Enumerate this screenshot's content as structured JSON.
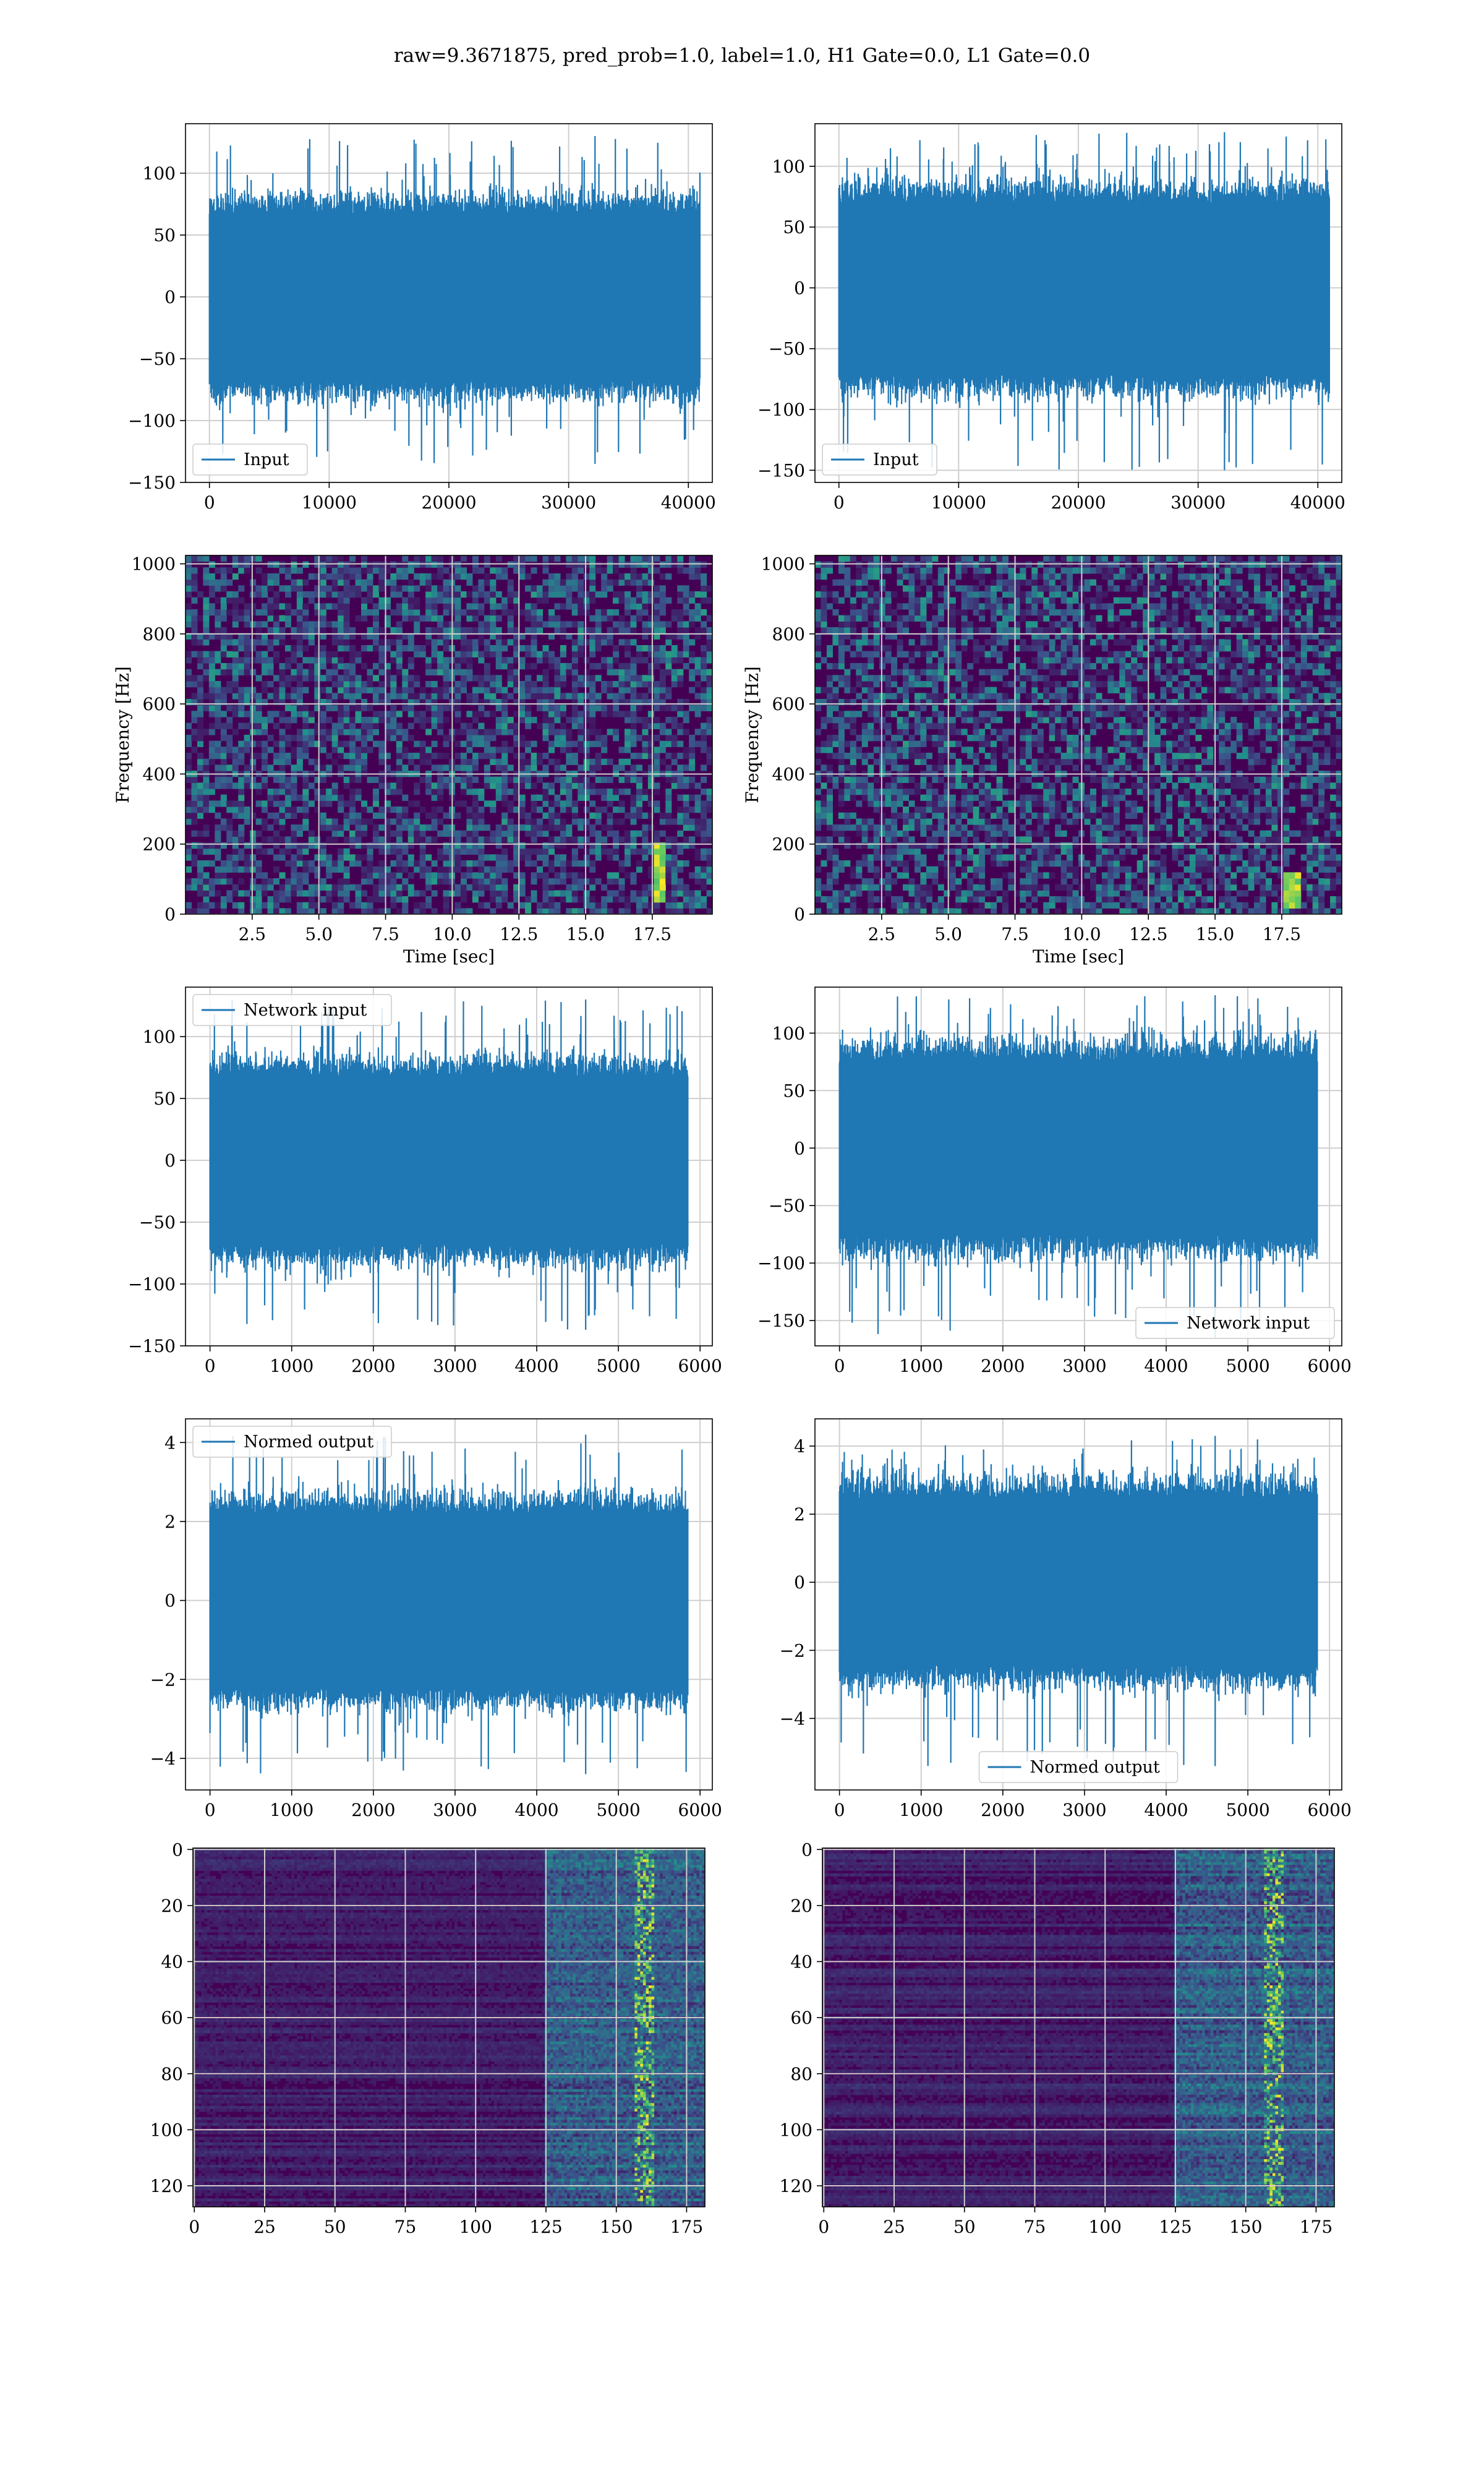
{
  "figure_title": "raw=9.3671875, pred_prob=1.0, label=1.0, H1 Gate=0.0, L1 Gate=0.0",
  "colors": {
    "series": "#1f77b4",
    "viridis_low": "#440154",
    "viridis_mid": "#21918c",
    "viridis_high": "#fde725",
    "grid": "#cfcfcf"
  },
  "chart_data": [
    {
      "id": "input-h1",
      "type": "line",
      "title": "",
      "xlabel": "",
      "ylabel": "",
      "xlim": [
        -2000,
        42000
      ],
      "ylim": [
        -150,
        140
      ],
      "legend": "Input",
      "legend_loc": "lower-left",
      "x_range": [
        0,
        40960
      ],
      "y_envelope": {
        "min": -135,
        "max": 130
      },
      "xticks": [
        {
          "v": 0,
          "label": "0"
        },
        {
          "v": 10000,
          "label": "10000"
        },
        {
          "v": 20000,
          "label": "20000"
        },
        {
          "v": 30000,
          "label": "30000"
        },
        {
          "v": 40000,
          "label": "40000"
        }
      ],
      "yticks": [
        {
          "v": -150,
          "label": "−150"
        },
        {
          "v": -100,
          "label": "−100"
        },
        {
          "v": -50,
          "label": "−50"
        },
        {
          "v": 0,
          "label": "0"
        },
        {
          "v": 50,
          "label": "50"
        },
        {
          "v": 100,
          "label": "100"
        }
      ]
    },
    {
      "id": "input-l1",
      "type": "line",
      "title": "",
      "xlabel": "",
      "ylabel": "",
      "xlim": [
        -2000,
        42000
      ],
      "ylim": [
        -160,
        135
      ],
      "legend": "Input",
      "legend_loc": "lower-left",
      "x_range": [
        0,
        40960
      ],
      "y_envelope": {
        "min": -150,
        "max": 128
      },
      "xticks": [
        {
          "v": 0,
          "label": "0"
        },
        {
          "v": 10000,
          "label": "10000"
        },
        {
          "v": 20000,
          "label": "20000"
        },
        {
          "v": 30000,
          "label": "30000"
        },
        {
          "v": 40000,
          "label": "40000"
        }
      ],
      "yticks": [
        {
          "v": -150,
          "label": "−150"
        },
        {
          "v": -100,
          "label": "−100"
        },
        {
          "v": -50,
          "label": "−50"
        },
        {
          "v": 0,
          "label": "0"
        },
        {
          "v": 50,
          "label": "50"
        },
        {
          "v": 100,
          "label": "100"
        }
      ]
    },
    {
      "id": "spec-h1",
      "type": "heatmap",
      "title": "",
      "xlabel": "Time [sec]",
      "ylabel": "Frequency [Hz]",
      "xlim": [
        0,
        19.75
      ],
      "ylim": [
        0,
        1024
      ],
      "hot_spot": {
        "t": 17.8,
        "f_range": [
          30,
          200
        ]
      },
      "xticks": [
        {
          "v": 2.5,
          "label": "2.5"
        },
        {
          "v": 5,
          "label": "5.0"
        },
        {
          "v": 7.5,
          "label": "7.5"
        },
        {
          "v": 10,
          "label": "10.0"
        },
        {
          "v": 12.5,
          "label": "12.5"
        },
        {
          "v": 15,
          "label": "15.0"
        },
        {
          "v": 17.5,
          "label": "17.5"
        }
      ],
      "yticks": [
        {
          "v": 0,
          "label": "0"
        },
        {
          "v": 200,
          "label": "200"
        },
        {
          "v": 400,
          "label": "400"
        },
        {
          "v": 600,
          "label": "600"
        },
        {
          "v": 800,
          "label": "800"
        },
        {
          "v": 1000,
          "label": "1000"
        }
      ]
    },
    {
      "id": "spec-l1",
      "type": "heatmap",
      "title": "",
      "xlabel": "Time [sec]",
      "ylabel": "Frequency [Hz]",
      "xlim": [
        0,
        19.75
      ],
      "ylim": [
        0,
        1024
      ],
      "hot_spot": {
        "t": 17.9,
        "f_range": [
          20,
          120
        ]
      },
      "xticks": [
        {
          "v": 2.5,
          "label": "2.5"
        },
        {
          "v": 5,
          "label": "5.0"
        },
        {
          "v": 7.5,
          "label": "7.5"
        },
        {
          "v": 10,
          "label": "10.0"
        },
        {
          "v": 12.5,
          "label": "12.5"
        },
        {
          "v": 15,
          "label": "15.0"
        },
        {
          "v": 17.5,
          "label": "17.5"
        }
      ],
      "yticks": [
        {
          "v": 0,
          "label": "0"
        },
        {
          "v": 200,
          "label": "200"
        },
        {
          "v": 400,
          "label": "400"
        },
        {
          "v": 600,
          "label": "600"
        },
        {
          "v": 800,
          "label": "800"
        },
        {
          "v": 1000,
          "label": "1000"
        }
      ]
    },
    {
      "id": "net-h1",
      "type": "line",
      "title": "",
      "xlabel": "",
      "ylabel": "",
      "xlim": [
        -300,
        6150
      ],
      "ylim": [
        -150,
        140
      ],
      "legend": "Network input",
      "legend_loc": "upper-left",
      "x_range": [
        0,
        5850
      ],
      "y_envelope": {
        "min": -137,
        "max": 130
      },
      "xticks": [
        {
          "v": 0,
          "label": "0"
        },
        {
          "v": 1000,
          "label": "1000"
        },
        {
          "v": 2000,
          "label": "2000"
        },
        {
          "v": 3000,
          "label": "3000"
        },
        {
          "v": 4000,
          "label": "4000"
        },
        {
          "v": 5000,
          "label": "5000"
        },
        {
          "v": 6000,
          "label": "6000"
        }
      ],
      "yticks": [
        {
          "v": -150,
          "label": "−150"
        },
        {
          "v": -100,
          "label": "−100"
        },
        {
          "v": -50,
          "label": "−50"
        },
        {
          "v": 0,
          "label": "0"
        },
        {
          "v": 50,
          "label": "50"
        },
        {
          "v": 100,
          "label": "100"
        }
      ]
    },
    {
      "id": "net-l1",
      "type": "line",
      "title": "",
      "xlabel": "",
      "ylabel": "",
      "xlim": [
        -300,
        6150
      ],
      "ylim": [
        -172,
        140
      ],
      "legend": "Network input",
      "legend_loc": "lower-right",
      "x_range": [
        0,
        5850
      ],
      "y_envelope": {
        "min": -165,
        "max": 133
      },
      "xticks": [
        {
          "v": 0,
          "label": "0"
        },
        {
          "v": 1000,
          "label": "1000"
        },
        {
          "v": 2000,
          "label": "2000"
        },
        {
          "v": 3000,
          "label": "3000"
        },
        {
          "v": 4000,
          "label": "4000"
        },
        {
          "v": 5000,
          "label": "5000"
        },
        {
          "v": 6000,
          "label": "6000"
        }
      ],
      "yticks": [
        {
          "v": -150,
          "label": "−150"
        },
        {
          "v": -100,
          "label": "−100"
        },
        {
          "v": -50,
          "label": "−50"
        },
        {
          "v": 0,
          "label": "0"
        },
        {
          "v": 50,
          "label": "50"
        },
        {
          "v": 100,
          "label": "100"
        }
      ]
    },
    {
      "id": "normed-h1",
      "type": "line",
      "title": "",
      "xlabel": "",
      "ylabel": "",
      "xlim": [
        -300,
        6150
      ],
      "ylim": [
        -4.8,
        4.6
      ],
      "legend": "Normed output",
      "legend_loc": "upper-left",
      "x_range": [
        0,
        5850
      ],
      "y_envelope": {
        "min": -4.4,
        "max": 4.2
      },
      "xticks": [
        {
          "v": 0,
          "label": "0"
        },
        {
          "v": 1000,
          "label": "1000"
        },
        {
          "v": 2000,
          "label": "2000"
        },
        {
          "v": 3000,
          "label": "3000"
        },
        {
          "v": 4000,
          "label": "4000"
        },
        {
          "v": 5000,
          "label": "5000"
        },
        {
          "v": 6000,
          "label": "6000"
        }
      ],
      "yticks": [
        {
          "v": -4,
          "label": "−4"
        },
        {
          "v": -2,
          "label": "−2"
        },
        {
          "v": 0,
          "label": "0"
        },
        {
          "v": 2,
          "label": "2"
        },
        {
          "v": 4,
          "label": "4"
        }
      ]
    },
    {
      "id": "normed-l1",
      "type": "line",
      "title": "",
      "xlabel": "",
      "ylabel": "",
      "xlim": [
        -300,
        6150
      ],
      "ylim": [
        -6.1,
        4.8
      ],
      "legend": "Normed output",
      "legend_loc": "lower-center",
      "x_range": [
        0,
        5850
      ],
      "y_envelope": {
        "min": -5.4,
        "max": 4.3
      },
      "xticks": [
        {
          "v": 0,
          "label": "0"
        },
        {
          "v": 1000,
          "label": "1000"
        },
        {
          "v": 2000,
          "label": "2000"
        },
        {
          "v": 3000,
          "label": "3000"
        },
        {
          "v": 4000,
          "label": "4000"
        },
        {
          "v": 5000,
          "label": "5000"
        },
        {
          "v": 6000,
          "label": "6000"
        }
      ],
      "yticks": [
        {
          "v": -4,
          "label": "−4"
        },
        {
          "v": -2,
          "label": "−2"
        },
        {
          "v": 0,
          "label": "0"
        },
        {
          "v": 2,
          "label": "2"
        },
        {
          "v": 4,
          "label": "4"
        }
      ]
    },
    {
      "id": "feat-h1",
      "type": "heatmap",
      "title": "",
      "xlabel": "",
      "ylabel": "",
      "xlim": [
        -0.5,
        181.5
      ],
      "ylim_inverted": [
        -0.5,
        127.5
      ],
      "active_columns": [
        125,
        182
      ],
      "peak_column": 160,
      "xticks": [
        {
          "v": 0,
          "label": "0"
        },
        {
          "v": 25,
          "label": "25"
        },
        {
          "v": 50,
          "label": "50"
        },
        {
          "v": 75,
          "label": "75"
        },
        {
          "v": 100,
          "label": "100"
        },
        {
          "v": 125,
          "label": "125"
        },
        {
          "v": 150,
          "label": "150"
        },
        {
          "v": 175,
          "label": "175"
        }
      ],
      "yticks": [
        {
          "v": 0,
          "label": "0"
        },
        {
          "v": 20,
          "label": "20"
        },
        {
          "v": 40,
          "label": "40"
        },
        {
          "v": 60,
          "label": "60"
        },
        {
          "v": 80,
          "label": "80"
        },
        {
          "v": 100,
          "label": "100"
        },
        {
          "v": 120,
          "label": "120"
        }
      ]
    },
    {
      "id": "feat-l1",
      "type": "heatmap",
      "title": "",
      "xlabel": "",
      "ylabel": "",
      "xlim": [
        -0.5,
        181.5
      ],
      "ylim_inverted": [
        -0.5,
        127.5
      ],
      "active_columns": [
        125,
        182
      ],
      "peak_column": 160,
      "xticks": [
        {
          "v": 0,
          "label": "0"
        },
        {
          "v": 25,
          "label": "25"
        },
        {
          "v": 50,
          "label": "50"
        },
        {
          "v": 75,
          "label": "75"
        },
        {
          "v": 100,
          "label": "100"
        },
        {
          "v": 125,
          "label": "125"
        },
        {
          "v": 150,
          "label": "150"
        },
        {
          "v": 175,
          "label": "175"
        }
      ],
      "yticks": [
        {
          "v": 0,
          "label": "0"
        },
        {
          "v": 20,
          "label": "20"
        },
        {
          "v": 40,
          "label": "40"
        },
        {
          "v": 60,
          "label": "60"
        },
        {
          "v": 80,
          "label": "80"
        },
        {
          "v": 100,
          "label": "100"
        },
        {
          "v": 120,
          "label": "120"
        }
      ]
    }
  ]
}
